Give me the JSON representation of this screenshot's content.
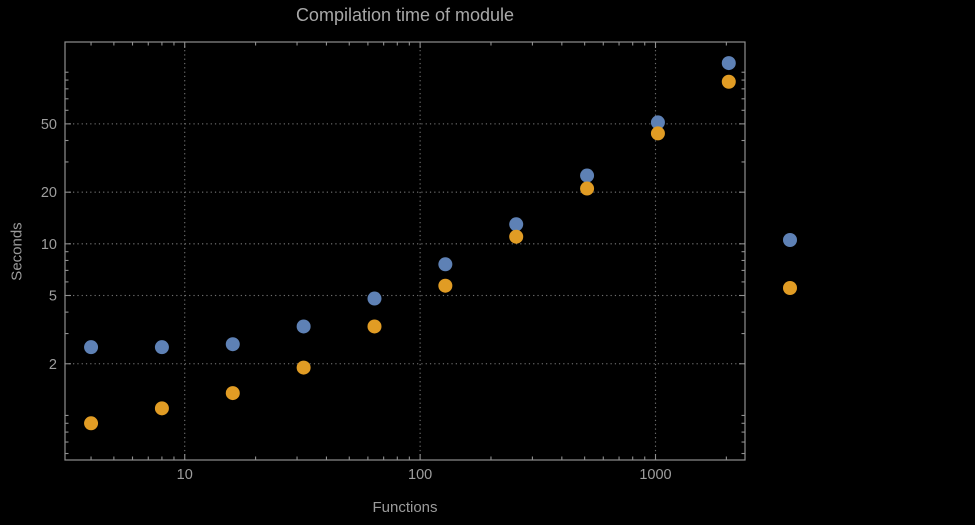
{
  "chart": {
    "title": "Compilation time of module",
    "xlabel": "Functions",
    "ylabel": "Seconds"
  },
  "chart_data": {
    "type": "scatter",
    "title": "Compilation time of module",
    "xlabel": "Functions",
    "ylabel": "Seconds",
    "x_scale": "log",
    "y_scale": "log",
    "xlim": [
      3.1,
      2400
    ],
    "ylim": [
      0.55,
      150
    ],
    "grid": "dotted",
    "x_ticks": [
      10,
      100,
      1000
    ],
    "y_ticks": [
      2,
      5,
      10,
      20,
      50
    ],
    "x_grid": [
      10,
      100,
      1000
    ],
    "y_grid": [
      2,
      5,
      10,
      20,
      50
    ],
    "x_minor_ticks": [
      4,
      5,
      6,
      7,
      8,
      9,
      20,
      30,
      40,
      50,
      60,
      70,
      80,
      90,
      200,
      300,
      400,
      500,
      600,
      700,
      800,
      900,
      2000
    ],
    "y_minor_ticks": [
      0.6,
      0.7,
      0.8,
      0.9,
      1,
      3,
      4,
      6,
      7,
      8,
      9,
      30,
      40,
      60,
      70,
      80,
      90,
      100
    ],
    "x": [
      4,
      8,
      16,
      32,
      64,
      128,
      256,
      512,
      1024,
      2048
    ],
    "series": [
      {
        "name": "blue",
        "color": "#5e81b5",
        "values": [
          2.5,
          2.5,
          2.6,
          3.3,
          4.8,
          7.6,
          13,
          25,
          51,
          113
        ]
      },
      {
        "name": "orange",
        "color": "#e19c24",
        "values": [
          0.9,
          1.1,
          1.35,
          1.9,
          3.3,
          5.7,
          11,
          21,
          44,
          88
        ]
      }
    ],
    "legend": {
      "position": "right-outside",
      "entries": [
        {
          "name": "series-blue",
          "color": "#5e81b5",
          "label": ""
        },
        {
          "name": "series-orange",
          "color": "#e19c24",
          "label": ""
        }
      ]
    },
    "colors": {
      "background": "#000000",
      "frame": "#8f8f8f",
      "grid": "#6e6e6e",
      "tick_text": "#9e9e9e",
      "title_text": "#a8a8a8"
    },
    "marker": {
      "shape": "circle",
      "radius": 7
    }
  }
}
